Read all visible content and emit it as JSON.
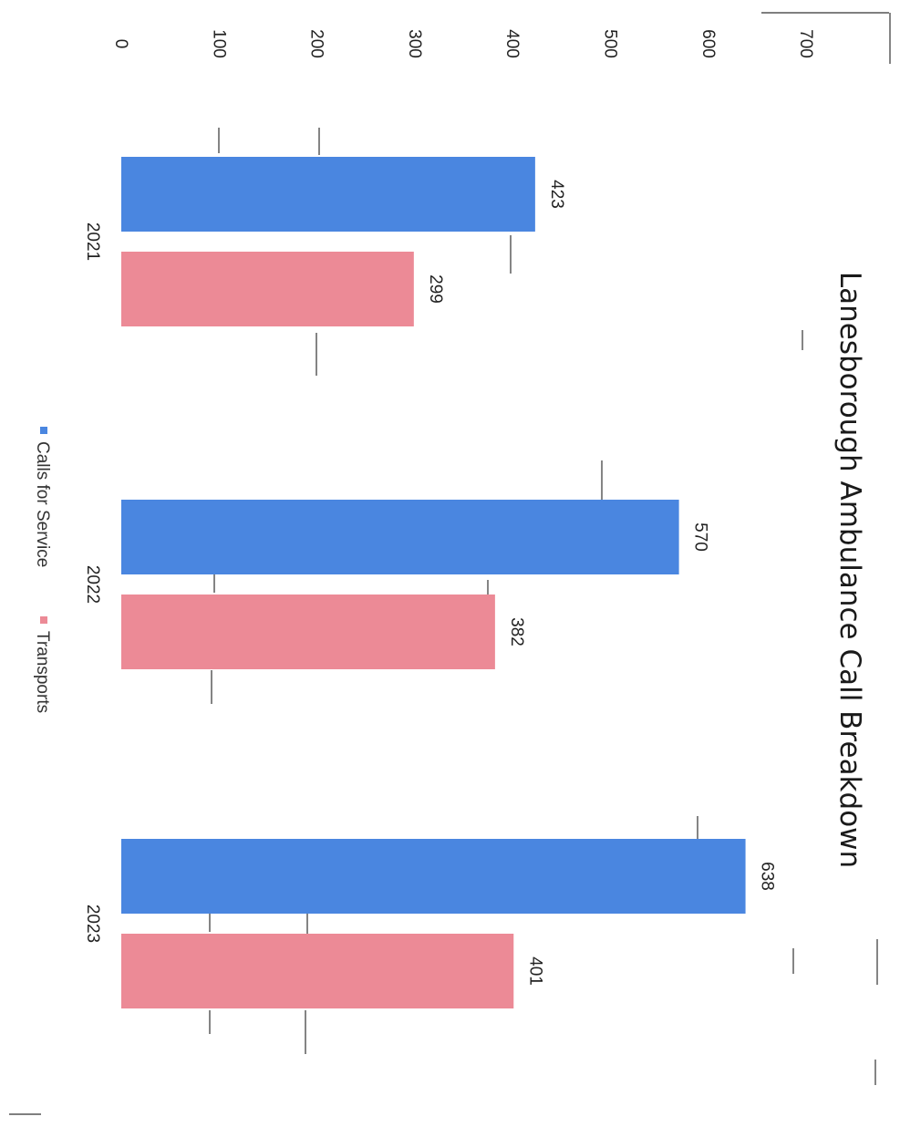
{
  "chart_data": {
    "type": "bar",
    "title": "Lanesborough Ambulance Call Breakdown",
    "categories": [
      "2021",
      "2022",
      "2023"
    ],
    "series": [
      {
        "name": "Calls for Service",
        "values": [
          423,
          570,
          638
        ],
        "color": "#4a86e0"
      },
      {
        "name": "Transports",
        "values": [
          299,
          382,
          401
        ],
        "color": "#ec8a96"
      }
    ],
    "ylim": [
      0,
      700
    ],
    "yticks": [
      0,
      100,
      200,
      300,
      400,
      500,
      600,
      700
    ],
    "data_labels": true,
    "legend_position": "bottom",
    "orientation": "rotated 90 degrees clockwise"
  }
}
